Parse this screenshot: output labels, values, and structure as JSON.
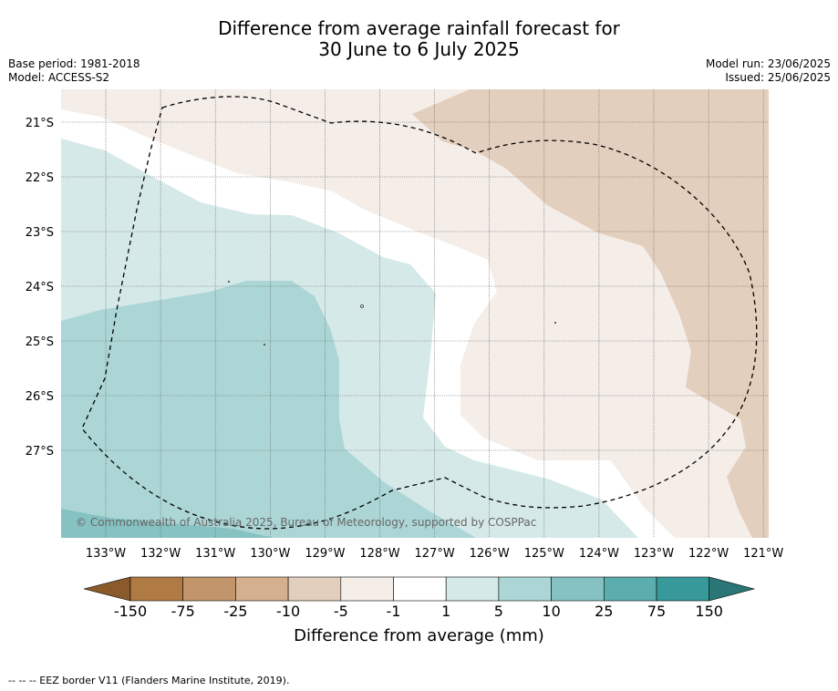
{
  "title": {
    "line1": "Difference from average rainfall forecast for",
    "line2": "30 June to 6 July 2025"
  },
  "meta": {
    "base_period": "Base period: 1981-2018",
    "model": "Model: ACCESS-S2",
    "model_run": "Model run: 23/06/2025",
    "issued": "Issued: 25/06/2025"
  },
  "map": {
    "lat_labels": [
      "21°S",
      "22°S",
      "23°S",
      "24°S",
      "25°S",
      "26°S",
      "27°S"
    ],
    "lon_labels": [
      "133°W",
      "132°W",
      "131°W",
      "130°W",
      "129°W",
      "128°W",
      "127°W",
      "126°W",
      "125°W",
      "124°W",
      "123°W",
      "122°W",
      "121°W"
    ],
    "copyright": "© Commonwealth of Australia 2025, Bureau of Meteorology, supported by COSPPac"
  },
  "colorbar": {
    "labels": [
      "-150",
      "-75",
      "-25",
      "-10",
      "-5",
      "-1",
      "1",
      "5",
      "10",
      "25",
      "75",
      "150"
    ],
    "colors": [
      "#8b5a2b",
      "#b07a44",
      "#c2956a",
      "#d4b08e",
      "#e3cfbd",
      "#f4ede8",
      "#ffffff",
      "#d6e9e9",
      "#acd6d6",
      "#86c2c2",
      "#5cadad",
      "#37999a",
      "#2a7575"
    ],
    "title": "Difference from average (mm)"
  },
  "footer": "--  --  -- EEZ border V11 (Flanders Marine Institute, 2019)."
}
